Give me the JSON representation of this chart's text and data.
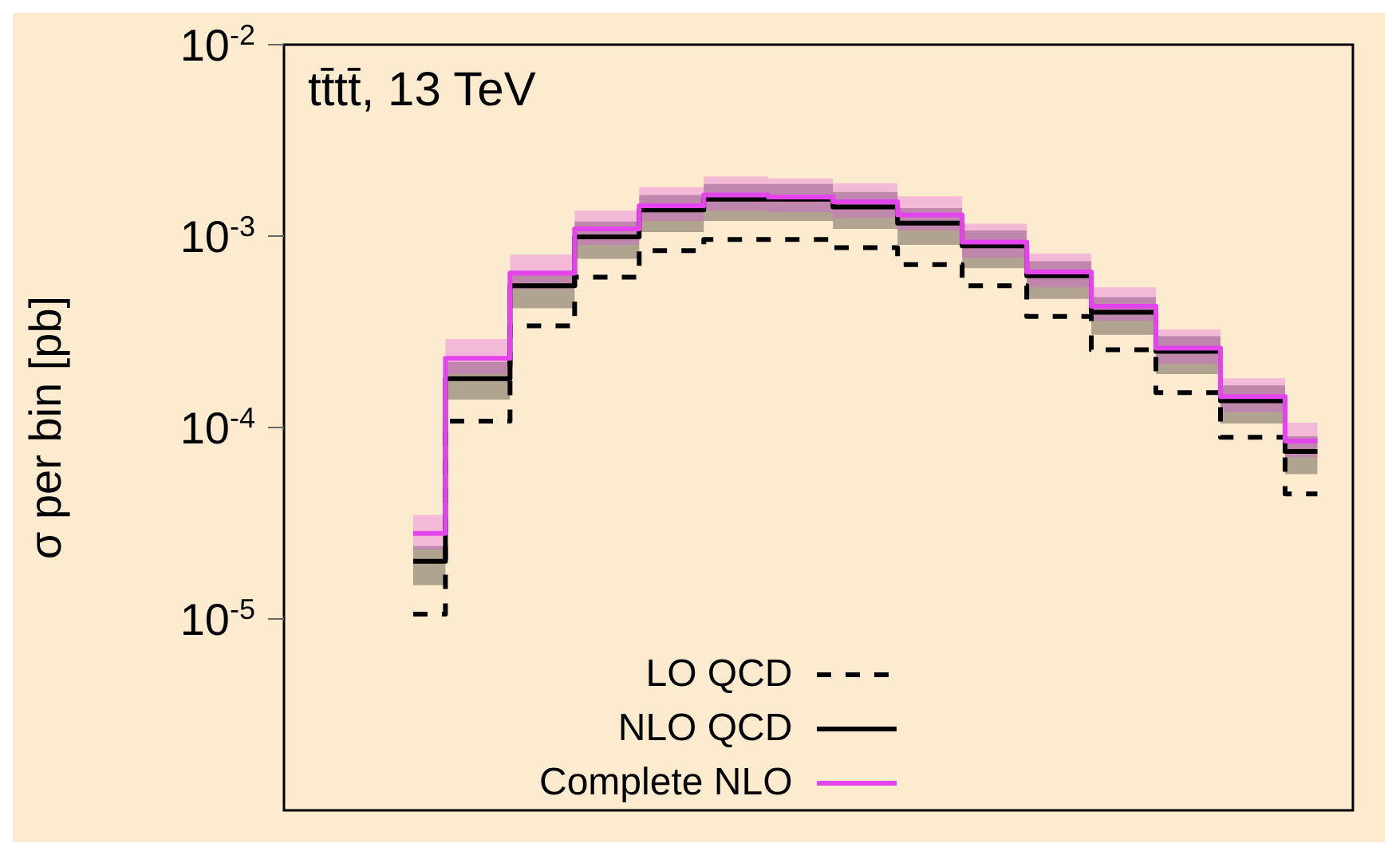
{
  "chart_data": {
    "type": "step",
    "title": "tt̄tt̄, 13 TeV",
    "ylabel": "σ per bin [pb]",
    "categories": [
      null,
      null,
      null,
      null,
      null,
      null,
      null,
      null,
      null,
      null,
      null,
      null,
      null,
      null,
      null
    ],
    "log": "y",
    "ylim": [
      1e-06,
      0.01
    ],
    "yticks": [
      {
        "value": 1e-05,
        "label": "10$^{-5}$"
      },
      {
        "value": 0.0001,
        "label": "10$^{-4}$"
      },
      {
        "value": 0.001,
        "label": "10$^{-3}$"
      },
      {
        "value": 0.01,
        "label": "10$^{-2}$"
      }
    ],
    "tick_labels": "y",
    "grid": false,
    "legend": "bottom",
    "series": [
      {
        "name": "LO QCD",
        "color": "#000000",
        "line_style": "dashed",
        "values": [
          1.06e-05,
          0.000108,
          0.00034,
          0.00061,
          0.00084,
          0.00096,
          0.00096,
          0.00087,
          0.00071,
          0.00055,
          0.00038,
          0.000255,
          0.000152,
          8.9e-05,
          4.5e-05
        ]
      },
      {
        "name": "NLO QCD",
        "color": "#000000",
        "line_style": "solid",
        "values": [
          2e-05,
          0.00018,
          0.00055,
          0.00099,
          0.00137,
          0.00156,
          0.00156,
          0.00142,
          0.00117,
          0.00089,
          0.00062,
          0.0004,
          0.00025,
          0.000138,
          7.5e-05
        ],
        "lower": [
          1.5e-05,
          0.00014,
          0.00042,
          0.00076,
          0.00105,
          0.0012,
          0.0012,
          0.00109,
          0.0009,
          0.00068,
          0.00047,
          0.000305,
          0.00019,
          0.000105,
          5.7e-05
        ],
        "upper": [
          2.4e-05,
          0.00022,
          0.00066,
          0.00119,
          0.00164,
          0.00187,
          0.00187,
          0.0017,
          0.0014,
          0.00107,
          0.00074,
          0.00048,
          0.0003,
          0.000166,
          9e-05
        ]
      },
      {
        "name": "Complete NLO",
        "color": "#e444ec",
        "line_style": "solid",
        "values": [
          2.8e-05,
          0.00023,
          0.00064,
          0.00109,
          0.00144,
          0.00164,
          0.0016,
          0.00151,
          0.00129,
          0.00093,
          0.00065,
          0.00043,
          0.00026,
          0.000145,
          8.5e-05
        ],
        "lower": [
          2.3e-05,
          0.00019,
          0.00053,
          0.0009,
          0.0012,
          0.00136,
          0.00133,
          0.00125,
          0.00107,
          0.00077,
          0.00054,
          0.00036,
          0.000215,
          0.00012,
          7e-05
        ],
        "upper": [
          3.5e-05,
          0.00029,
          0.0008,
          0.00136,
          0.0018,
          0.00205,
          0.002,
          0.00189,
          0.00161,
          0.00116,
          0.00081,
          0.00054,
          0.000325,
          0.000181,
          0.000106
        ]
      }
    ]
  }
}
